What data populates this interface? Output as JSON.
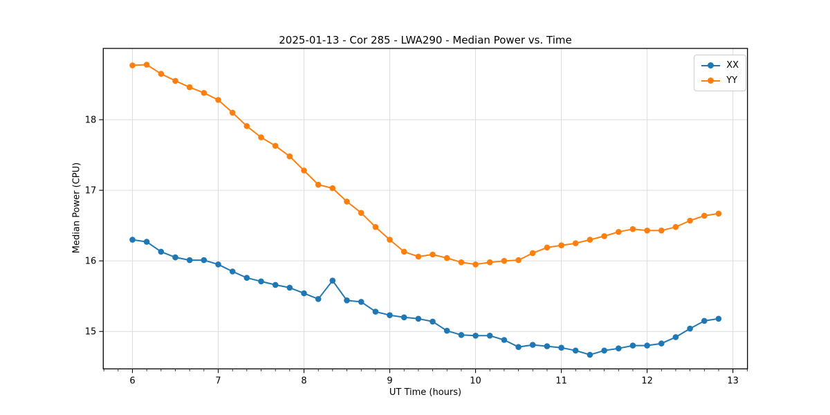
{
  "chart_data": {
    "type": "line",
    "title": "2025-01-13 - Cor 285 - LWA290 - Median Power vs. Time",
    "xlabel": "UT Time (hours)",
    "ylabel": "Median Power (CPU)",
    "xlim": [
      5.66,
      13.17
    ],
    "ylim": [
      14.47,
      19.01
    ],
    "xticks": [
      6,
      7,
      8,
      9,
      10,
      11,
      12,
      13
    ],
    "yticks": [
      15,
      16,
      17,
      18
    ],
    "x_minor_step": 0.16667,
    "grid": true,
    "legend_position": "upper right",
    "marker": "circle",
    "x": [
      6.0,
      6.1667,
      6.3333,
      6.5,
      6.6667,
      6.8333,
      7.0,
      7.1667,
      7.3333,
      7.5,
      7.6667,
      7.8333,
      8.0,
      8.1667,
      8.3333,
      8.5,
      8.6667,
      8.8333,
      9.0,
      9.1667,
      9.3333,
      9.5,
      9.6667,
      9.8333,
      10.0,
      10.1667,
      10.3333,
      10.5,
      10.6667,
      10.8333,
      11.0,
      11.1667,
      11.3333,
      11.5,
      11.6667,
      11.8333,
      12.0,
      12.1667,
      12.3333,
      12.5,
      12.6667,
      12.8333
    ],
    "series": [
      {
        "name": "XX",
        "color": "#1f77b4",
        "values": [
          16.3,
          16.27,
          16.13,
          16.05,
          16.01,
          16.01,
          15.95,
          15.85,
          15.76,
          15.71,
          15.66,
          15.62,
          15.54,
          15.46,
          15.72,
          15.44,
          15.42,
          15.28,
          15.23,
          15.2,
          15.18,
          15.14,
          15.01,
          14.95,
          14.94,
          14.94,
          14.88,
          14.78,
          14.81,
          14.79,
          14.77,
          14.73,
          14.67,
          14.73,
          14.76,
          14.8,
          14.8,
          14.83,
          14.92,
          15.04,
          15.15,
          15.18
        ]
      },
      {
        "name": "YY",
        "color": "#ff7f0e",
        "values": [
          18.77,
          18.78,
          18.65,
          18.55,
          18.46,
          18.38,
          18.28,
          18.1,
          17.91,
          17.75,
          17.63,
          17.48,
          17.28,
          17.08,
          17.03,
          16.84,
          16.68,
          16.48,
          16.3,
          16.13,
          16.06,
          16.09,
          16.04,
          15.98,
          15.95,
          15.98,
          16.0,
          16.01,
          16.11,
          16.19,
          16.22,
          16.25,
          16.3,
          16.35,
          16.41,
          16.45,
          16.43,
          16.43,
          16.48,
          16.57,
          16.64,
          16.67
        ]
      }
    ]
  }
}
